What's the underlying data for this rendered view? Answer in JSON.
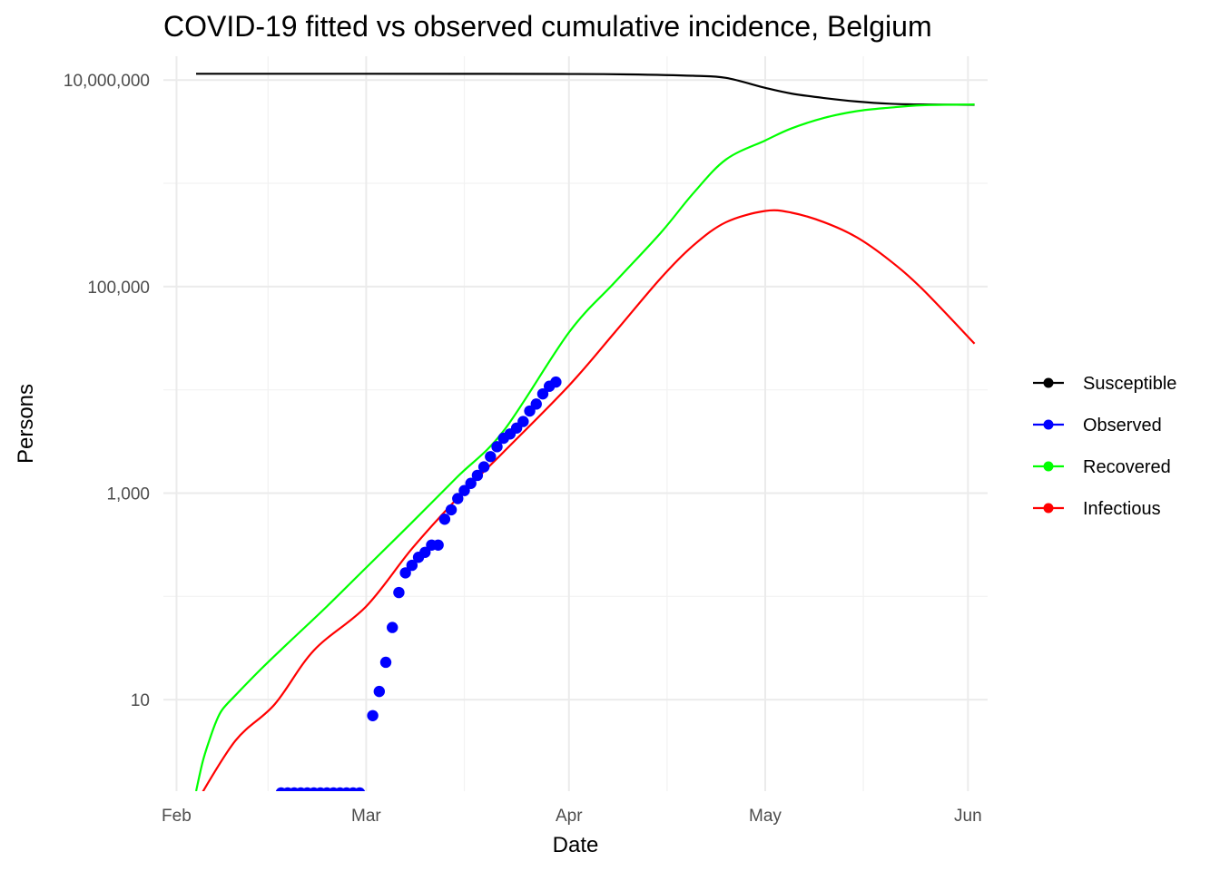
{
  "chart_data": {
    "type": "line",
    "title": "COVID-19 fitted vs observed cumulative incidence, Belgium",
    "xlabel": "Date",
    "ylabel": "Persons",
    "x_axis": {
      "type": "date",
      "ticks": [
        {
          "date": "2020-02-01",
          "label": "Feb"
        },
        {
          "date": "2020-03-01",
          "label": "Mar"
        },
        {
          "date": "2020-04-01",
          "label": "Apr"
        },
        {
          "date": "2020-05-01",
          "label": "May"
        },
        {
          "date": "2020-06-01",
          "label": "Jun"
        }
      ],
      "range": [
        "2020-01-30",
        "2020-06-04"
      ]
    },
    "y_axis": {
      "scale": "log10",
      "ticks": [
        {
          "value": 10,
          "label": "10"
        },
        {
          "value": 1000,
          "label": "1,000"
        },
        {
          "value": 100000,
          "label": "100,000"
        },
        {
          "value": 10000000,
          "label": "10,000,000"
        }
      ],
      "range": [
        1.3,
        17000000
      ]
    },
    "grid": true,
    "legend_placement": "right",
    "legend": [
      {
        "name": "Susceptible",
        "color": "#000000"
      },
      {
        "name": "Observed",
        "color": "#0000ff"
      },
      {
        "name": "Recovered",
        "color": "#00ff00"
      },
      {
        "name": "Infectious",
        "color": "#ff0000"
      }
    ],
    "series": [
      {
        "name": "Susceptible",
        "color": "#000000",
        "kind": "line",
        "points": [
          [
            "2020-02-04",
            11500000
          ],
          [
            "2020-03-01",
            11500000
          ],
          [
            "2020-03-20",
            11490000
          ],
          [
            "2020-04-01",
            11450000
          ],
          [
            "2020-04-10",
            11350000
          ],
          [
            "2020-04-20",
            11000000
          ],
          [
            "2020-04-25",
            10500000
          ],
          [
            "2020-05-01",
            8400000
          ],
          [
            "2020-05-05",
            7400000
          ],
          [
            "2020-05-10",
            6700000
          ],
          [
            "2020-05-15",
            6200000
          ],
          [
            "2020-05-20",
            5900000
          ],
          [
            "2020-05-25",
            5800000
          ],
          [
            "2020-06-02",
            5750000
          ]
        ]
      },
      {
        "name": "Recovered",
        "color": "#00ff00",
        "kind": "line",
        "points": [
          [
            "2020-02-04",
            1.3
          ],
          [
            "2020-02-05",
            2.5
          ],
          [
            "2020-02-06",
            4
          ],
          [
            "2020-02-07",
            6
          ],
          [
            "2020-02-08",
            8
          ],
          [
            "2020-02-10",
            11
          ],
          [
            "2020-02-14",
            20
          ],
          [
            "2020-02-18",
            35
          ],
          [
            "2020-02-24",
            80
          ],
          [
            "2020-03-01",
            190
          ],
          [
            "2020-03-08",
            520
          ],
          [
            "2020-03-15",
            1450
          ],
          [
            "2020-03-22",
            4000
          ],
          [
            "2020-04-01",
            36000
          ],
          [
            "2020-04-08",
            110000
          ],
          [
            "2020-04-15",
            330000
          ],
          [
            "2020-04-20",
            800000
          ],
          [
            "2020-04-25",
            1700000
          ],
          [
            "2020-05-01",
            2600000
          ],
          [
            "2020-05-05",
            3400000
          ],
          [
            "2020-05-10",
            4300000
          ],
          [
            "2020-05-15",
            5000000
          ],
          [
            "2020-05-20",
            5400000
          ],
          [
            "2020-05-25",
            5700000
          ],
          [
            "2020-06-02",
            5800000
          ]
        ]
      },
      {
        "name": "Infectious",
        "color": "#ff0000",
        "kind": "line",
        "points": [
          [
            "2020-02-04",
            1
          ],
          [
            "2020-02-10",
            4
          ],
          [
            "2020-02-16",
            9
          ],
          [
            "2020-02-22",
            30
          ],
          [
            "2020-03-01",
            80
          ],
          [
            "2020-03-08",
            290
          ],
          [
            "2020-03-15",
            900
          ],
          [
            "2020-03-22",
            2500
          ],
          [
            "2020-04-01",
            11000
          ],
          [
            "2020-04-08",
            36000
          ],
          [
            "2020-04-15",
            120000
          ],
          [
            "2020-04-20",
            250000
          ],
          [
            "2020-04-25",
            420000
          ],
          [
            "2020-05-01",
            540000
          ],
          [
            "2020-05-05",
            520000
          ],
          [
            "2020-05-10",
            420000
          ],
          [
            "2020-05-15",
            300000
          ],
          [
            "2020-05-20",
            180000
          ],
          [
            "2020-05-25",
            95000
          ],
          [
            "2020-06-02",
            28000
          ]
        ]
      },
      {
        "name": "Observed",
        "color": "#0000ff",
        "kind": "points",
        "points": [
          [
            "2020-02-04",
            1
          ],
          [
            "2020-02-05",
            1
          ],
          [
            "2020-02-06",
            1
          ],
          [
            "2020-02-07",
            1
          ],
          [
            "2020-02-08",
            1
          ],
          [
            "2020-02-09",
            1
          ],
          [
            "2020-02-10",
            1
          ],
          [
            "2020-02-11",
            1
          ],
          [
            "2020-02-12",
            1
          ],
          [
            "2020-02-13",
            1
          ],
          [
            "2020-02-14",
            1
          ],
          [
            "2020-02-15",
            1
          ],
          [
            "2020-02-16",
            1
          ],
          [
            "2020-02-17",
            0
          ],
          [
            "2020-02-18",
            0
          ],
          [
            "2020-02-19",
            0
          ],
          [
            "2020-02-20",
            0
          ],
          [
            "2020-02-21",
            0
          ],
          [
            "2020-02-22",
            0
          ],
          [
            "2020-02-23",
            0
          ],
          [
            "2020-02-24",
            0
          ],
          [
            "2020-02-25",
            0
          ],
          [
            "2020-02-26",
            0
          ],
          [
            "2020-02-27",
            0
          ],
          [
            "2020-02-28",
            0
          ],
          [
            "2020-02-29",
            0
          ],
          [
            "2020-03-01",
            1
          ],
          [
            "2020-03-02",
            7
          ],
          [
            "2020-03-03",
            12
          ],
          [
            "2020-03-04",
            23
          ],
          [
            "2020-03-05",
            50
          ],
          [
            "2020-03-06",
            109
          ],
          [
            "2020-03-07",
            169
          ],
          [
            "2020-03-08",
            200
          ],
          [
            "2020-03-09",
            239
          ],
          [
            "2020-03-10",
            267
          ],
          [
            "2020-03-11",
            314
          ],
          [
            "2020-03-12",
            314
          ],
          [
            "2020-03-13",
            559
          ],
          [
            "2020-03-14",
            689
          ],
          [
            "2020-03-15",
            886
          ],
          [
            "2020-03-16",
            1058
          ],
          [
            "2020-03-17",
            1243
          ],
          [
            "2020-03-18",
            1486
          ],
          [
            "2020-03-19",
            1795
          ],
          [
            "2020-03-20",
            2257
          ],
          [
            "2020-03-21",
            2815
          ],
          [
            "2020-03-22",
            3401
          ],
          [
            "2020-03-23",
            3743
          ],
          [
            "2020-03-24",
            4269
          ],
          [
            "2020-03-25",
            4937
          ],
          [
            "2020-03-26",
            6235
          ],
          [
            "2020-03-27",
            7284
          ],
          [
            "2020-03-28",
            9134
          ],
          [
            "2020-03-29",
            10836
          ],
          [
            "2020-03-30",
            11899
          ]
        ]
      }
    ]
  }
}
